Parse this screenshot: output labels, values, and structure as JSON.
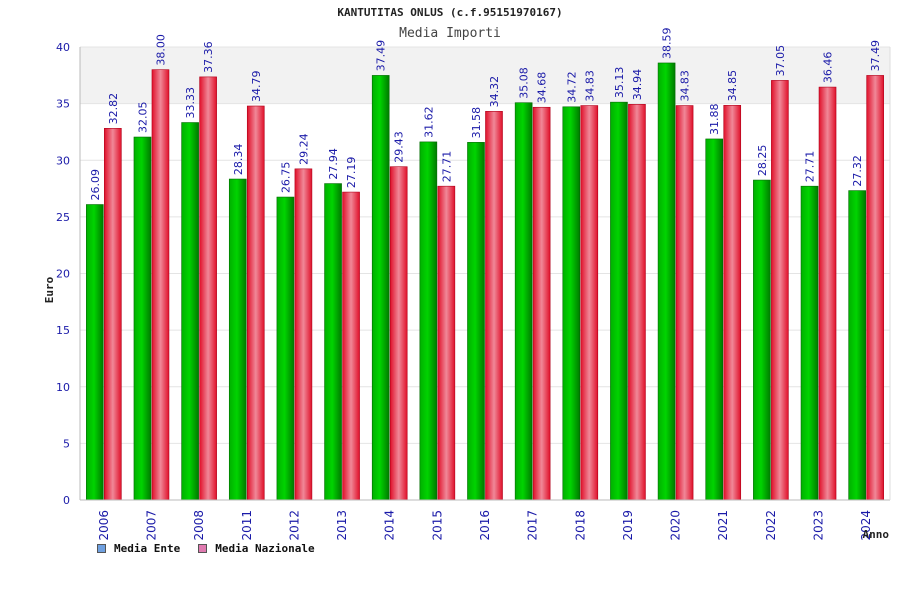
{
  "header": {
    "title": "KANTUTITAS ONLUS (c.f.95151970167)",
    "subtitle": "Media Importi"
  },
  "legend": {
    "items": [
      {
        "label": "Media Ente",
        "color": "#6fa0e0"
      },
      {
        "label": "Media Nazionale",
        "color": "#e07ab0"
      }
    ]
  },
  "chart_data": {
    "type": "bar",
    "title": "Media Importi",
    "xlabel": "Anno",
    "ylabel": "Euro",
    "ylim": [
      0,
      40
    ],
    "yticks": [
      0,
      5,
      10,
      15,
      20,
      25,
      30,
      35,
      40
    ],
    "grid": true,
    "legend_position": "bottom-left",
    "categories": [
      "2006",
      "2007",
      "2008",
      "2011",
      "2012",
      "2013",
      "2014",
      "2015",
      "2016",
      "2017",
      "2018",
      "2019",
      "2020",
      "2021",
      "2022",
      "2023",
      "2024"
    ],
    "series": [
      {
        "name": "Media Ente",
        "color": "#00a000",
        "values": [
          26.09,
          32.05,
          33.33,
          28.34,
          26.75,
          27.94,
          37.49,
          31.62,
          31.58,
          35.08,
          34.72,
          35.13,
          38.59,
          31.88,
          28.25,
          27.71,
          27.32
        ]
      },
      {
        "name": "Media Nazionale",
        "color": "#e01030",
        "values": [
          32.82,
          38.0,
          37.36,
          34.79,
          29.24,
          27.19,
          29.43,
          27.71,
          34.32,
          34.68,
          34.83,
          34.94,
          34.83,
          34.85,
          37.05,
          36.46,
          37.49
        ]
      }
    ]
  }
}
